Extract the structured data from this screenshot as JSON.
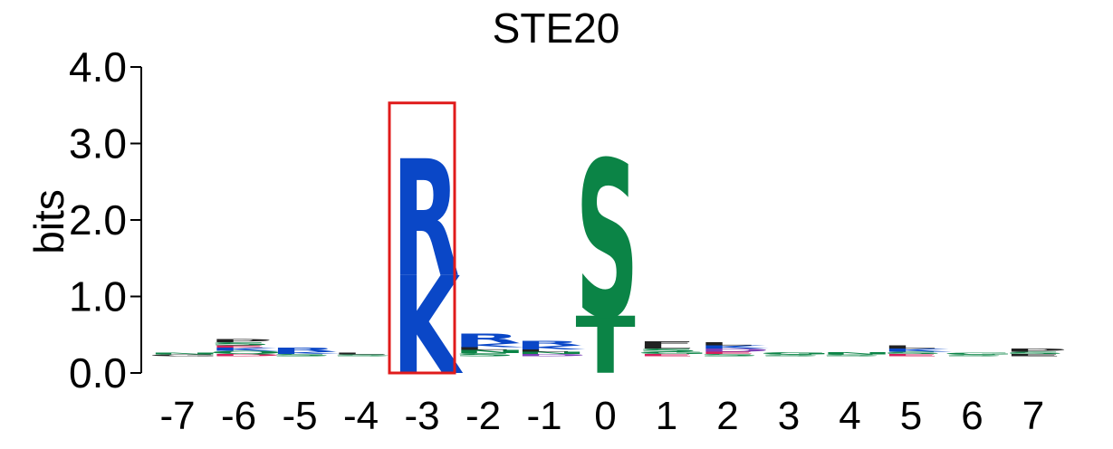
{
  "chart_data": {
    "type": "sequence-logo",
    "title": "STE20",
    "ylabel": "bits",
    "ylim": [
      0,
      4.0
    ],
    "yticks": [
      "0.0",
      "1.0",
      "2.0",
      "3.0",
      "4.0"
    ],
    "positions": [
      "-7",
      "-6",
      "-5",
      "-4",
      "-3",
      "-2",
      "-1",
      "0",
      "1",
      "2",
      "3",
      "4",
      "5",
      "6",
      "7"
    ],
    "highlighted_position": "-3",
    "colors": {
      "basic": "#0a47c7",
      "polar": "#0b8446",
      "hydrophobic": "#222222",
      "acidic": "#d6205c",
      "other": "#7b3fb5",
      "highlight": "#e01b1b"
    },
    "columns": [
      {
        "position": "-7",
        "letters": [
          {
            "aa": "G",
            "bits": 0.02,
            "color": "#222222"
          },
          {
            "aa": "N",
            "bits": 0.02,
            "color": "#0b8446"
          }
        ]
      },
      {
        "position": "-6",
        "letters": [
          {
            "aa": "D",
            "bits": 0.03,
            "color": "#d6205c"
          },
          {
            "aa": "Q",
            "bits": 0.04,
            "color": "#0b8446"
          },
          {
            "aa": "K",
            "bits": 0.04,
            "color": "#0a47c7"
          },
          {
            "aa": "E",
            "bits": 0.03,
            "color": "#d6205c"
          },
          {
            "aa": "S",
            "bits": 0.04,
            "color": "#0b8446"
          },
          {
            "aa": "P",
            "bits": 0.04,
            "color": "#222222"
          }
        ]
      },
      {
        "position": "-5",
        "letters": [
          {
            "aa": "S",
            "bits": 0.03,
            "color": "#0b8446"
          },
          {
            "aa": "K",
            "bits": 0.03,
            "color": "#0a47c7"
          },
          {
            "aa": "R",
            "bits": 0.05,
            "color": "#0a47c7"
          }
        ]
      },
      {
        "position": "-4",
        "letters": [
          {
            "aa": "S",
            "bits": 0.02,
            "color": "#0b8446"
          },
          {
            "aa": "L",
            "bits": 0.02,
            "color": "#222222"
          }
        ]
      },
      {
        "position": "-3",
        "letters": [
          {
            "aa": "K",
            "bits": 1.28,
            "color": "#0a47c7"
          },
          {
            "aa": "R",
            "bits": 1.53,
            "color": "#0a47c7"
          }
        ]
      },
      {
        "position": "-2",
        "letters": [
          {
            "aa": "S",
            "bits": 0.04,
            "color": "#0b8446"
          },
          {
            "aa": "N",
            "bits": 0.04,
            "color": "#0b8446"
          },
          {
            "aa": "L",
            "bits": 0.04,
            "color": "#222222"
          },
          {
            "aa": "K",
            "bits": 0.05,
            "color": "#0a47c7"
          },
          {
            "aa": "R",
            "bits": 0.12,
            "color": "#0a47c7"
          }
        ]
      },
      {
        "position": "-1",
        "letters": [
          {
            "aa": "D",
            "bits": 0.03,
            "color": "#7b3fb5"
          },
          {
            "aa": "N",
            "bits": 0.03,
            "color": "#0b8446"
          },
          {
            "aa": "L",
            "bits": 0.03,
            "color": "#222222"
          },
          {
            "aa": "K",
            "bits": 0.05,
            "color": "#0a47c7"
          },
          {
            "aa": "R",
            "bits": 0.06,
            "color": "#0a47c7"
          }
        ]
      },
      {
        "position": "0",
        "letters": [
          {
            "aa": "T",
            "bits": 0.75,
            "color": "#0b8446"
          },
          {
            "aa": "S",
            "bits": 2.05,
            "color": "#0b8446"
          }
        ]
      },
      {
        "position": "1",
        "letters": [
          {
            "aa": "E",
            "bits": 0.03,
            "color": "#d6205c"
          },
          {
            "aa": "G",
            "bits": 0.03,
            "color": "#0b8446"
          },
          {
            "aa": "S",
            "bits": 0.04,
            "color": "#0b8446"
          },
          {
            "aa": "L",
            "bits": 0.04,
            "color": "#222222"
          },
          {
            "aa": "F",
            "bits": 0.05,
            "color": "#222222"
          }
        ]
      },
      {
        "position": "2",
        "letters": [
          {
            "aa": "S",
            "bits": 0.03,
            "color": "#0b8446"
          },
          {
            "aa": "E",
            "bits": 0.03,
            "color": "#d6205c"
          },
          {
            "aa": "D",
            "bits": 0.04,
            "color": "#7b3fb5"
          },
          {
            "aa": "K",
            "bits": 0.04,
            "color": "#0a47c7"
          },
          {
            "aa": "L",
            "bits": 0.04,
            "color": "#222222"
          }
        ]
      },
      {
        "position": "3",
        "letters": [
          {
            "aa": "S",
            "bits": 0.02,
            "color": "#0b8446"
          },
          {
            "aa": "G",
            "bits": 0.03,
            "color": "#0b8446"
          }
        ]
      },
      {
        "position": "4",
        "letters": [
          {
            "aa": "S",
            "bits": 0.02,
            "color": "#0b8446"
          },
          {
            "aa": "N",
            "bits": 0.03,
            "color": "#0b8446"
          }
        ]
      },
      {
        "position": "5",
        "letters": [
          {
            "aa": "E",
            "bits": 0.03,
            "color": "#d6205c"
          },
          {
            "aa": "S",
            "bits": 0.03,
            "color": "#0b8446"
          },
          {
            "aa": "K",
            "bits": 0.04,
            "color": "#0a47c7"
          },
          {
            "aa": "L",
            "bits": 0.04,
            "color": "#222222"
          }
        ]
      },
      {
        "position": "6",
        "letters": [
          {
            "aa": "S",
            "bits": 0.02,
            "color": "#0b8446"
          },
          {
            "aa": "G",
            "bits": 0.02,
            "color": "#0b8446"
          }
        ]
      },
      {
        "position": "7",
        "letters": [
          {
            "aa": "E",
            "bits": 0.03,
            "color": "#222222"
          },
          {
            "aa": "S",
            "bits": 0.03,
            "color": "#0b8446"
          },
          {
            "aa": "P",
            "bits": 0.04,
            "color": "#222222"
          }
        ]
      }
    ]
  }
}
